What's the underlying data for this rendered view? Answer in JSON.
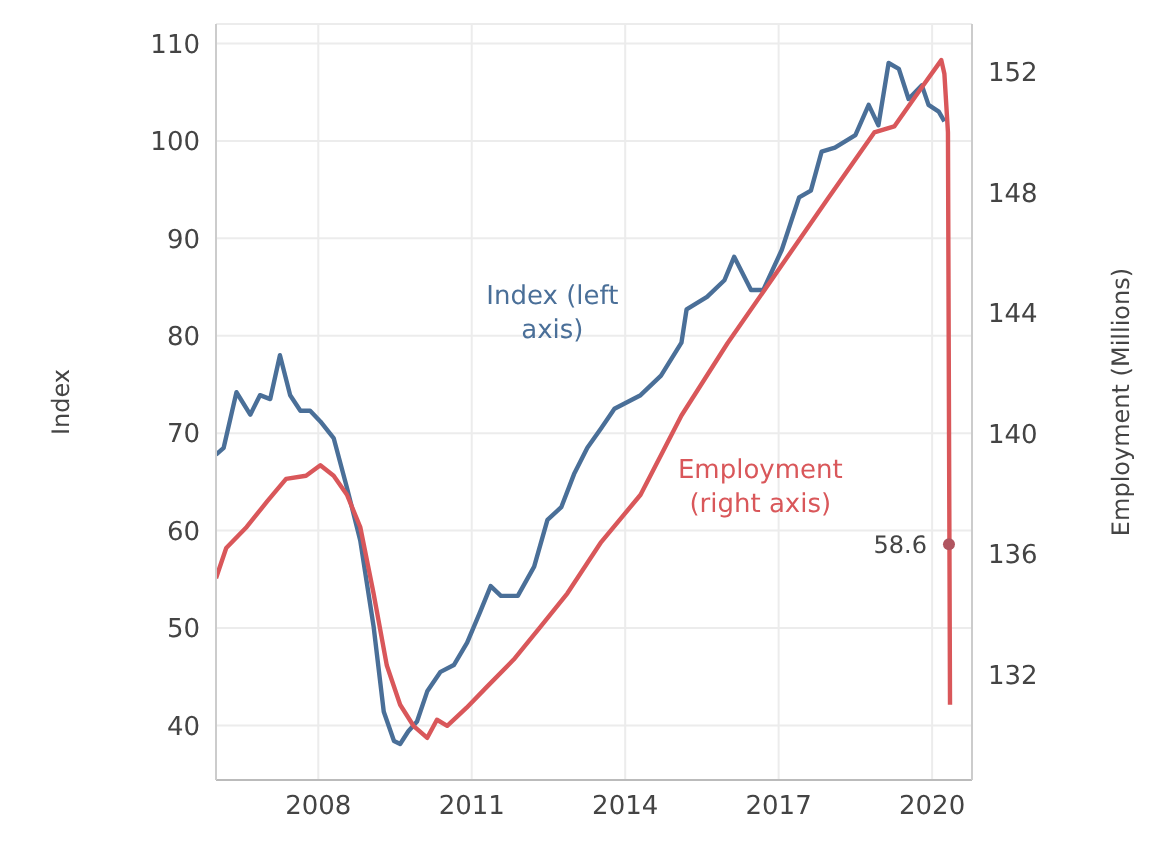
{
  "chart_data": {
    "type": "line",
    "ylabel": "Index",
    "y2label": "Employment (Millions)",
    "grid": true,
    "xlim": [
      2006.0,
      2020.78
    ],
    "xticks": [
      2008,
      2011,
      2014,
      2017,
      2020
    ],
    "ylim": [
      34.4,
      112
    ],
    "yticks": [
      40,
      50,
      60,
      70,
      80,
      90,
      100,
      110
    ],
    "y2lim": [
      128.5,
      153.6
    ],
    "y2ticks": [
      132,
      136,
      140,
      144,
      148,
      152
    ],
    "annotations": [
      {
        "text": "58.6",
        "x": 2020.33,
        "y": 58.6
      }
    ],
    "series": [
      {
        "name": "Index (left axis)",
        "color": "#4a6f98",
        "x": [
          2006.0,
          2006.15,
          2006.4,
          2006.67,
          2006.86,
          2007.06,
          2007.25,
          2007.45,
          2007.65,
          2007.84,
          2008.04,
          2008.3,
          2008.56,
          2008.82,
          2009.08,
          2009.28,
          2009.48,
          2009.6,
          2009.76,
          2009.93,
          2010.13,
          2010.39,
          2010.65,
          2010.91,
          2011.16,
          2011.37,
          2011.57,
          2011.9,
          2012.22,
          2012.48,
          2012.75,
          2013.0,
          2013.26,
          2013.53,
          2013.79,
          2014.3,
          2014.7,
          2015.1,
          2015.2,
          2015.6,
          2015.94,
          2016.13,
          2016.46,
          2016.7,
          2017.06,
          2017.4,
          2017.63,
          2017.84,
          2018.1,
          2018.5,
          2018.76,
          2018.95,
          2019.15,
          2019.35,
          2019.54,
          2019.8,
          2019.93,
          2020.13,
          2020.24
        ],
        "values": [
          67.8,
          68.5,
          74.2,
          71.9,
          73.9,
          73.5,
          78.0,
          73.9,
          72.3,
          72.3,
          71.2,
          69.5,
          64.4,
          59.0,
          50.2,
          41.4,
          38.4,
          38.1,
          39.4,
          40.4,
          43.5,
          45.5,
          46.2,
          48.5,
          51.6,
          54.3,
          53.3,
          53.3,
          56.3,
          61.1,
          62.4,
          65.8,
          68.5,
          70.5,
          72.5,
          73.9,
          75.9,
          79.3,
          82.7,
          84.0,
          85.7,
          88.1,
          84.7,
          84.7,
          88.8,
          94.2,
          94.9,
          98.9,
          99.3,
          100.6,
          103.7,
          101.6,
          108.0,
          107.4,
          104.3,
          105.7,
          103.7,
          103.0,
          102.0
        ]
      },
      {
        "name": "Employment (right axis)",
        "color": "#d9575a",
        "axis": "y2",
        "x": [
          2006.0,
          2006.2,
          2006.6,
          2007.0,
          2007.37,
          2007.76,
          2008.04,
          2008.3,
          2008.56,
          2008.82,
          2009.08,
          2009.34,
          2009.6,
          2009.86,
          2010.13,
          2010.32,
          2010.52,
          2010.9,
          2011.3,
          2011.82,
          2012.35,
          2012.87,
          2013.53,
          2014.3,
          2015.1,
          2016.0,
          2016.9,
          2017.96,
          2018.87,
          2019.26,
          2019.8,
          2020.18,
          2020.24,
          2020.31,
          2020.35
        ],
        "values": [
          135.2,
          136.2,
          136.9,
          137.75,
          138.5,
          138.6,
          138.95,
          138.6,
          137.97,
          136.9,
          134.7,
          132.3,
          131.0,
          130.3,
          129.9,
          130.5,
          130.3,
          130.9,
          131.6,
          132.5,
          133.6,
          134.7,
          136.4,
          137.97,
          140.6,
          143.0,
          145.2,
          147.8,
          150.0,
          150.2,
          151.5,
          152.4,
          151.95,
          150.0,
          131.0
        ]
      }
    ]
  }
}
